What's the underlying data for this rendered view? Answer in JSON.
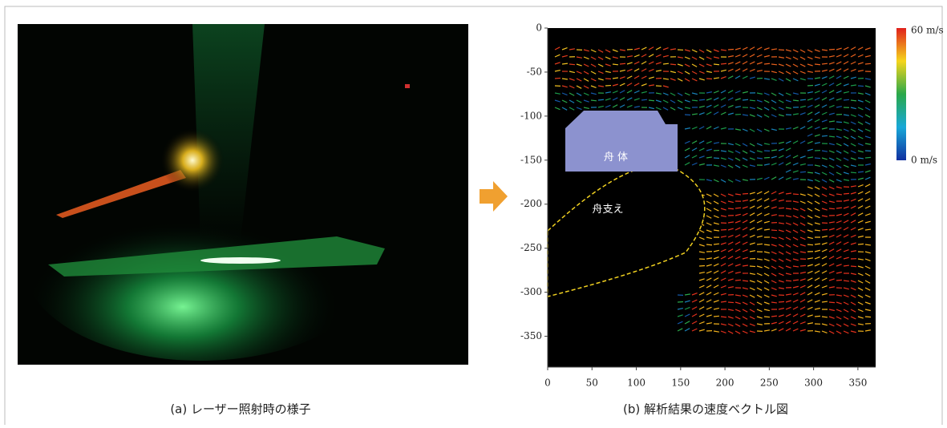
{
  "figure": {
    "panel_a": {
      "caption": "(a) レーザー照射時の様子"
    },
    "panel_b": {
      "caption": "(b) 解析結果の速度ベクトル図",
      "xlim": [
        0,
        370
      ],
      "ylim": [
        -385,
        0
      ],
      "xticks": [
        0,
        50,
        100,
        150,
        200,
        250,
        300,
        350
      ],
      "yticks": [
        0,
        -50,
        -100,
        -150,
        -200,
        -250,
        -300,
        -350
      ],
      "colorbar": {
        "max_label": "60 m/s",
        "min_label": "0 m/s"
      },
      "annotations": {
        "hull": "舟 体",
        "support": "舟支え"
      }
    }
  }
}
